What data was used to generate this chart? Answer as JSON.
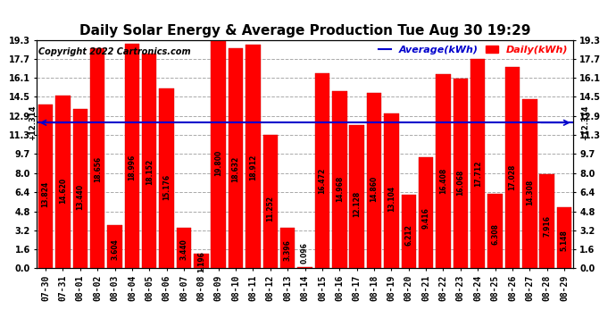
{
  "title": "Daily Solar Energy & Average Production Tue Aug 30 19:29",
  "copyright": "Copyright 2022 Cartronics.com",
  "average_label": "Average(kWh)",
  "daily_label": "Daily(kWh)",
  "average_value": 12.314,
  "categories": [
    "07-30",
    "07-31",
    "08-01",
    "08-02",
    "08-03",
    "08-04",
    "08-05",
    "08-06",
    "08-07",
    "08-08",
    "08-09",
    "08-10",
    "08-11",
    "08-12",
    "08-13",
    "08-14",
    "08-15",
    "08-16",
    "08-17",
    "08-18",
    "08-19",
    "08-20",
    "08-21",
    "08-22",
    "08-23",
    "08-24",
    "08-25",
    "08-26",
    "08-27",
    "08-28",
    "08-29"
  ],
  "values": [
    13.824,
    14.62,
    13.44,
    18.656,
    3.604,
    18.996,
    18.152,
    15.176,
    3.44,
    1.196,
    19.8,
    18.632,
    18.912,
    11.252,
    3.396,
    0.096,
    16.472,
    14.968,
    12.128,
    14.86,
    13.104,
    6.212,
    9.416,
    16.408,
    16.068,
    17.712,
    6.308,
    17.028,
    14.308,
    7.916,
    5.148
  ],
  "bar_color": "#ff0000",
  "bar_edge_color": "#ff0000",
  "average_line_color": "#0000cc",
  "background_color": "#ffffff",
  "grid_color": "#aaaaaa",
  "ylim": [
    0.0,
    19.3
  ],
  "yticks": [
    0.0,
    1.6,
    3.2,
    4.8,
    6.4,
    8.0,
    9.7,
    11.3,
    12.9,
    14.5,
    16.1,
    17.7,
    19.3
  ],
  "title_fontsize": 11,
  "tick_fontsize": 7,
  "value_fontsize": 5.5,
  "copyright_fontsize": 7,
  "legend_fontsize": 8
}
